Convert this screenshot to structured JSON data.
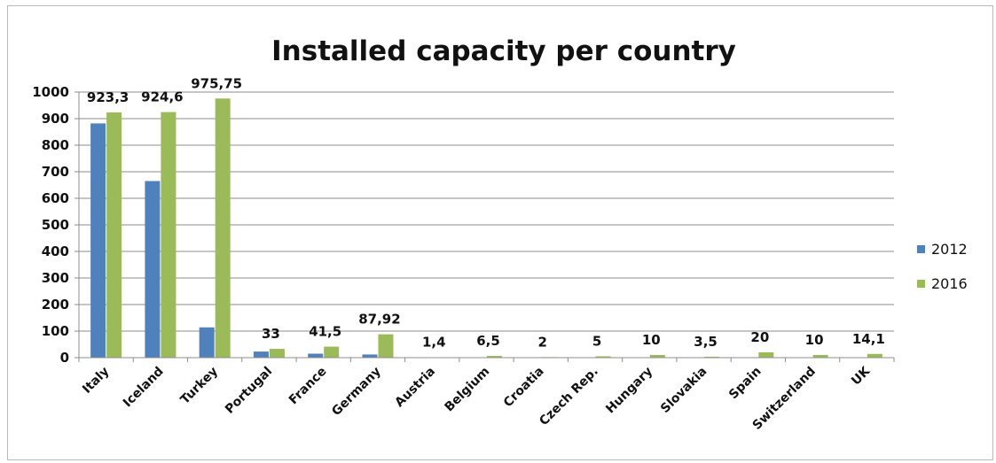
{
  "chart_data": {
    "type": "bar",
    "title": "Installed capacity per country",
    "xlabel": "",
    "ylabel": "",
    "ylim": [
      0,
      1000
    ],
    "yticks": [
      0,
      100,
      200,
      300,
      400,
      500,
      600,
      700,
      800,
      900,
      1000
    ],
    "grid": true,
    "legend_position": "right",
    "categories": [
      "Italy",
      "Iceland",
      "Turkey",
      "Portugal",
      "France",
      "Germany",
      "Austria",
      "Belgium",
      "Croatia",
      "Czech Rep.",
      "Hungary",
      "Slovakia",
      "Spain",
      "Switzerland",
      "UK"
    ],
    "series": [
      {
        "name": "2012",
        "color": "#4f81bd",
        "values": [
          882,
          665,
          114,
          23,
          15,
          12,
          0,
          0,
          0,
          0,
          0,
          0,
          0,
          0,
          0
        ]
      },
      {
        "name": "2016",
        "color": "#9bbb59",
        "values": [
          923.3,
          924.6,
          975.75,
          33,
          41.5,
          87.92,
          1.4,
          6.5,
          2,
          5,
          10,
          3.5,
          20,
          10,
          14.1
        ],
        "data_labels": [
          "923,3",
          "924,6",
          "975,75",
          "33",
          "41,5",
          "87,92",
          "1,4",
          "6,5",
          "2",
          "5",
          "10",
          "3,5",
          "20",
          "10",
          "14,1"
        ]
      }
    ]
  }
}
